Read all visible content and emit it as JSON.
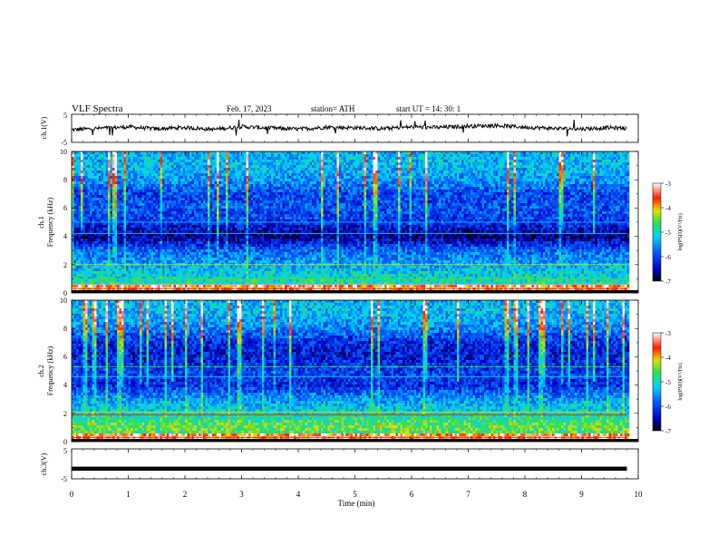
{
  "header": {
    "title": "VLF  Spectra",
    "date": "Feb. 17, 2023",
    "station": "station= ATH",
    "start": "start  UT  =    14: 30: 1"
  },
  "panels": {
    "ch1_ylabel": "ch.1(V)",
    "ch1_ticks": [
      "5",
      "-5"
    ],
    "spec1_ylabel_1": "ch.1",
    "spec1_ylabel_2": "Frequency (kHz)",
    "spec2_ylabel_1": "ch.2",
    "spec2_ylabel_2": "Frequency (kHz)",
    "freq_ticks": [
      "10",
      "8",
      "6",
      "4",
      "2",
      "0"
    ],
    "ch3_ylabel": "ch.3(V)",
    "ch3_ticks": [
      "5",
      "-5"
    ],
    "xlabel": "Time  (min)"
  },
  "colorbar": {
    "ticks": [
      "-3",
      "-4",
      "-5",
      "-6",
      "-7"
    ],
    "label": "log(PSD)(V²/Hz)"
  },
  "colors": {
    "bg_deep": "#000060",
    "blue": "#0020d0",
    "cyan": "#00b8ff",
    "green": "#28e060",
    "yellow": "#f0e000",
    "red": "#e00000"
  },
  "chart_data": [
    {
      "type": "line",
      "name": "ch1-waveform",
      "ylabel": "ch.1(V)",
      "xlim": [
        0,
        10
      ],
      "ylim": [
        -5,
        5
      ],
      "x": [
        0,
        0.5,
        1,
        1.5,
        2,
        2.5,
        3,
        3.5,
        4,
        4.5,
        5,
        5.5,
        6,
        6.5,
        7,
        7.5,
        8,
        8.5,
        9,
        9.5,
        9.8
      ],
      "y": [
        -0.5,
        0,
        0.5,
        -0.2,
        0.3,
        -0.4,
        0.6,
        0.1,
        -0.3,
        0.4,
        0.2,
        -0.1,
        0.5,
        0.3,
        0.8,
        1.0,
        0.4,
        0,
        -0.2,
        0.2,
        0
      ]
    },
    {
      "type": "heatmap",
      "name": "ch1-spectrogram",
      "xlabel": "Time  (min)",
      "ylabel": "Frequency (kHz)",
      "xlim": [
        0,
        10
      ],
      "ylim": [
        0,
        10
      ],
      "data_end_min": 9.8,
      "colorbar_range": [
        -7,
        -3
      ],
      "freq_bands_khz": [
        0,
        1,
        2,
        3,
        4,
        5,
        6,
        7,
        8,
        9,
        10
      ],
      "log_psd_by_band": [
        -4.6,
        -5.0,
        -5.4,
        -5.8,
        -6.7,
        -6.1,
        -5.9,
        -6.0,
        -5.5,
        -5.3
      ]
    },
    {
      "type": "heatmap",
      "name": "ch2-spectrogram",
      "xlabel": "Time  (min)",
      "ylabel": "Frequency (kHz)",
      "xlim": [
        0,
        10
      ],
      "ylim": [
        0,
        10
      ],
      "data_end_min": 9.8,
      "colorbar_range": [
        -7,
        -3
      ],
      "freq_bands_khz": [
        0,
        1,
        2,
        3,
        4,
        5,
        6,
        7,
        8,
        9,
        10
      ],
      "log_psd_by_band": [
        -4.8,
        -4.5,
        -5.0,
        -5.5,
        -6.2,
        -6.0,
        -6.3,
        -6.2,
        -5.6,
        -5.3
      ]
    },
    {
      "type": "line",
      "name": "ch3-waveform",
      "ylabel": "ch.3(V)",
      "xlim": [
        0,
        10
      ],
      "ylim": [
        -5,
        5
      ],
      "x": [
        0,
        9.8
      ],
      "y": [
        -1.6,
        -1.6
      ]
    }
  ],
  "x_ticks": [
    "0",
    "1",
    "2",
    "3",
    "4",
    "5",
    "6",
    "7",
    "8",
    "9",
    "10"
  ]
}
